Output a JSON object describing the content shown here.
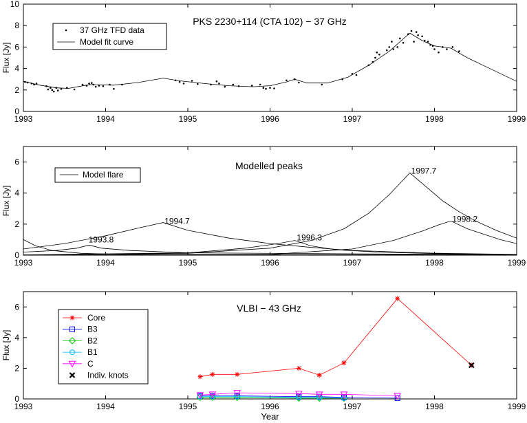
{
  "chart_data": [
    {
      "type": "scatter",
      "title": "PKS 2230+114 (CTA 102) − 37 GHz",
      "xlabel": "",
      "ylabel": "Flux [Jy]",
      "xlim": [
        1993,
        1999
      ],
      "ylim": [
        0,
        10
      ],
      "x_ticks": [
        "1993",
        "1994",
        "1995",
        "1996",
        "1997",
        "1998",
        "1999"
      ],
      "y_ticks": [
        "0",
        "2",
        "4",
        "6",
        "8",
        "10"
      ],
      "legend": [
        "37 GHz TFD data",
        "Model fit curve"
      ],
      "legend_position": "top-left",
      "series": [
        {
          "name": "37 GHz TFD data",
          "style": "dots",
          "points": [
            [
              1993.02,
              2.75
            ],
            [
              1993.05,
              2.7
            ],
            [
              1993.1,
              2.6
            ],
            [
              1993.13,
              2.5
            ],
            [
              1993.16,
              2.6
            ],
            [
              1993.28,
              2.35
            ],
            [
              1993.3,
              2.05
            ],
            [
              1993.33,
              2.2
            ],
            [
              1993.35,
              2.0
            ],
            [
              1993.37,
              1.85
            ],
            [
              1993.4,
              2.2
            ],
            [
              1993.42,
              1.95
            ],
            [
              1993.46,
              2.1
            ],
            [
              1993.53,
              2.2
            ],
            [
              1993.62,
              2.05
            ],
            [
              1993.72,
              2.5
            ],
            [
              1993.77,
              2.4
            ],
            [
              1993.8,
              2.6
            ],
            [
              1993.83,
              2.65
            ],
            [
              1993.85,
              2.5
            ],
            [
              1993.88,
              2.3
            ],
            [
              1993.92,
              2.4
            ],
            [
              1993.97,
              2.35
            ],
            [
              1994.05,
              2.5
            ],
            [
              1994.1,
              2.1
            ],
            [
              1994.2,
              2.5
            ],
            [
              1994.85,
              2.9
            ],
            [
              1994.9,
              2.75
            ],
            [
              1994.95,
              2.6
            ],
            [
              1995.05,
              2.85
            ],
            [
              1995.12,
              2.55
            ],
            [
              1995.28,
              2.5
            ],
            [
              1995.35,
              2.8
            ],
            [
              1995.38,
              2.6
            ],
            [
              1995.45,
              2.3
            ],
            [
              1995.55,
              2.5
            ],
            [
              1995.62,
              2.35
            ],
            [
              1995.78,
              2.4
            ],
            [
              1995.88,
              2.5
            ],
            [
              1995.92,
              2.2
            ],
            [
              1995.95,
              2.1
            ],
            [
              1996.0,
              2.2
            ],
            [
              1996.05,
              2.15
            ],
            [
              1996.2,
              2.9
            ],
            [
              1996.3,
              3.0
            ],
            [
              1996.35,
              2.7
            ],
            [
              1996.63,
              2.5
            ],
            [
              1996.88,
              3.0
            ],
            [
              1997.0,
              3.5
            ],
            [
              1997.05,
              3.4
            ],
            [
              1997.2,
              4.3
            ],
            [
              1997.25,
              4.6
            ],
            [
              1997.28,
              5.0
            ],
            [
              1997.3,
              5.5
            ],
            [
              1997.33,
              5.3
            ],
            [
              1997.42,
              5.7
            ],
            [
              1997.45,
              6.0
            ],
            [
              1997.48,
              6.5
            ],
            [
              1997.5,
              5.8
            ],
            [
              1997.55,
              6.0
            ],
            [
              1997.58,
              6.8
            ],
            [
              1997.62,
              6.4
            ],
            [
              1997.68,
              7.2
            ],
            [
              1997.72,
              7.5
            ],
            [
              1997.75,
              6.5
            ],
            [
              1997.78,
              7.4
            ],
            [
              1997.8,
              7.1
            ],
            [
              1997.85,
              7.0
            ],
            [
              1997.88,
              6.6
            ],
            [
              1997.92,
              6.5
            ],
            [
              1997.95,
              6.2
            ],
            [
              1997.98,
              6.1
            ],
            [
              1998.0,
              5.8
            ],
            [
              1998.05,
              5.5
            ],
            [
              1998.1,
              6.0
            ],
            [
              1998.15,
              5.8
            ],
            [
              1998.22,
              6.0
            ],
            [
              1998.3,
              5.6
            ]
          ]
        },
        {
          "name": "Model fit curve",
          "style": "line",
          "points": [
            [
              1993.0,
              2.8
            ],
            [
              1993.2,
              2.45
            ],
            [
              1993.4,
              2.2
            ],
            [
              1993.55,
              2.15
            ],
            [
              1993.8,
              2.5
            ],
            [
              1994.1,
              2.45
            ],
            [
              1994.4,
              2.7
            ],
            [
              1994.7,
              3.1
            ],
            [
              1994.9,
              2.85
            ],
            [
              1995.2,
              2.6
            ],
            [
              1995.5,
              2.4
            ],
            [
              1995.8,
              2.3
            ],
            [
              1996.0,
              2.4
            ],
            [
              1996.2,
              2.75
            ],
            [
              1996.3,
              3.0
            ],
            [
              1996.45,
              2.65
            ],
            [
              1996.7,
              2.65
            ],
            [
              1996.95,
              3.2
            ],
            [
              1997.2,
              4.3
            ],
            [
              1997.45,
              5.6
            ],
            [
              1997.7,
              7.3
            ],
            [
              1997.85,
              6.6
            ],
            [
              1998.0,
              6.1
            ],
            [
              1998.2,
              5.9
            ],
            [
              1998.4,
              5.0
            ],
            [
              1998.7,
              3.9
            ],
            [
              1999.0,
              2.8
            ]
          ]
        }
      ]
    },
    {
      "type": "line",
      "title": "Modelled peaks",
      "xlabel": "",
      "ylabel": "Flux [Jy]",
      "xlim": [
        1993,
        1999
      ],
      "ylim": [
        0,
        7
      ],
      "x_ticks": [
        "1993",
        "1994",
        "1995",
        "1996",
        "1997",
        "1998",
        "1999"
      ],
      "y_ticks": [
        "0",
        "2",
        "4",
        "6"
      ],
      "legend": [
        "Model flare"
      ],
      "legend_position": "top-left",
      "series": [
        {
          "peak_label": "",
          "points": [
            [
              1993.0,
              1.0
            ],
            [
              1993.15,
              0.6
            ],
            [
              1993.35,
              0.3
            ],
            [
              1993.7,
              0.12
            ],
            [
              1994.2,
              0.05
            ],
            [
              1999.0,
              0.02
            ]
          ]
        },
        {
          "peak_label": "1993.8",
          "points": [
            [
              1993.0,
              0.2
            ],
            [
              1993.4,
              0.3
            ],
            [
              1993.65,
              0.45
            ],
            [
              1993.8,
              0.65
            ],
            [
              1993.95,
              0.45
            ],
            [
              1994.3,
              0.3
            ],
            [
              1995.0,
              0.15
            ],
            [
              1999.0,
              0.02
            ]
          ]
        },
        {
          "peak_label": "1994.7",
          "points": [
            [
              1993.0,
              0.4
            ],
            [
              1993.5,
              0.75
            ],
            [
              1994.0,
              1.25
            ],
            [
              1994.4,
              1.75
            ],
            [
              1994.7,
              2.1
            ],
            [
              1995.0,
              1.6
            ],
            [
              1995.5,
              1.1
            ],
            [
              1996.0,
              0.75
            ],
            [
              1996.5,
              0.5
            ],
            [
              1997.0,
              0.3
            ],
            [
              1998.0,
              0.13
            ],
            [
              1999.0,
              0.05
            ]
          ]
        },
        {
          "peak_label": "1996.3",
          "points": [
            [
              1993.0,
              0.02
            ],
            [
              1995.0,
              0.15
            ],
            [
              1995.7,
              0.45
            ],
            [
              1996.1,
              0.75
            ],
            [
              1996.3,
              0.95
            ],
            [
              1996.5,
              0.6
            ],
            [
              1996.8,
              0.35
            ],
            [
              1997.3,
              0.2
            ],
            [
              1998.0,
              0.1
            ],
            [
              1999.0,
              0.04
            ]
          ]
        },
        {
          "peak_label": "1997.7",
          "points": [
            [
              1993.0,
              0.0
            ],
            [
              1995.0,
              0.12
            ],
            [
              1996.0,
              0.45
            ],
            [
              1996.5,
              0.95
            ],
            [
              1996.9,
              1.7
            ],
            [
              1997.2,
              2.7
            ],
            [
              1997.45,
              3.9
            ],
            [
              1997.7,
              5.3
            ],
            [
              1997.9,
              4.4
            ],
            [
              1998.1,
              3.5
            ],
            [
              1998.3,
              2.8
            ],
            [
              1998.5,
              2.2
            ],
            [
              1998.75,
              1.6
            ],
            [
              1999.0,
              1.1
            ]
          ]
        },
        {
          "peak_label": "1998.2",
          "points": [
            [
              1993.0,
              0.0
            ],
            [
              1996.0,
              0.05
            ],
            [
              1997.0,
              0.4
            ],
            [
              1997.5,
              0.95
            ],
            [
              1997.85,
              1.55
            ],
            [
              1998.05,
              1.95
            ],
            [
              1998.2,
              2.2
            ],
            [
              1998.4,
              1.7
            ],
            [
              1998.6,
              1.35
            ],
            [
              1998.8,
              1.0
            ],
            [
              1999.0,
              0.75
            ]
          ]
        }
      ]
    },
    {
      "type": "line",
      "title": "VLBI − 43 GHz",
      "xlabel": "Year",
      "ylabel": "Flux [Jy]",
      "xlim": [
        1993,
        1999
      ],
      "ylim": [
        0,
        7
      ],
      "x_ticks": [
        "1993",
        "1994",
        "1995",
        "1996",
        "1997",
        "1998",
        "1999"
      ],
      "y_ticks": [
        "0",
        "2",
        "4",
        "6"
      ],
      "legend_position": "top-left",
      "series": [
        {
          "name": "Core",
          "color": "#ff0000",
          "marker": "star",
          "x": [
            1995.15,
            1995.3,
            1995.6,
            1996.35,
            1996.6,
            1996.9,
            1997.55,
            1998.45
          ],
          "y": [
            1.45,
            1.6,
            1.6,
            2.0,
            1.55,
            2.35,
            6.55,
            2.2
          ]
        },
        {
          "name": "B3",
          "color": "#0000ff",
          "marker": "square",
          "x": [
            1995.15,
            1995.3,
            1995.6,
            1996.35,
            1996.6,
            1996.9,
            1997.55
          ],
          "y": [
            0.2,
            0.2,
            0.2,
            0.15,
            0.15,
            0.1,
            0.05
          ]
        },
        {
          "name": "B2",
          "color": "#00c800",
          "marker": "diamond",
          "x": [
            1995.15,
            1995.3,
            1995.6,
            1996.35,
            1996.6,
            1996.9
          ],
          "y": [
            0.1,
            0.1,
            0.1,
            0.05,
            0.05,
            0.05
          ]
        },
        {
          "name": "B1",
          "color": "#00b4ff",
          "marker": "circle",
          "x": [
            1995.15,
            1995.3,
            1995.6,
            1996.35,
            1996.6,
            1996.9
          ],
          "y": [
            0.15,
            0.15,
            0.15,
            0.1,
            0.1,
            0.05
          ]
        },
        {
          "name": "C",
          "color": "#ff00ff",
          "marker": "triangle-down",
          "x": [
            1995.15,
            1995.3,
            1995.6,
            1996.35,
            1996.6,
            1996.9,
            1997.55
          ],
          "y": [
            0.25,
            0.3,
            0.4,
            0.35,
            0.3,
            0.3,
            0.2
          ]
        },
        {
          "name": "Indiv. knots",
          "color": "#000000",
          "marker": "x",
          "x": [
            1998.45
          ],
          "y": [
            2.2
          ]
        }
      ]
    }
  ]
}
